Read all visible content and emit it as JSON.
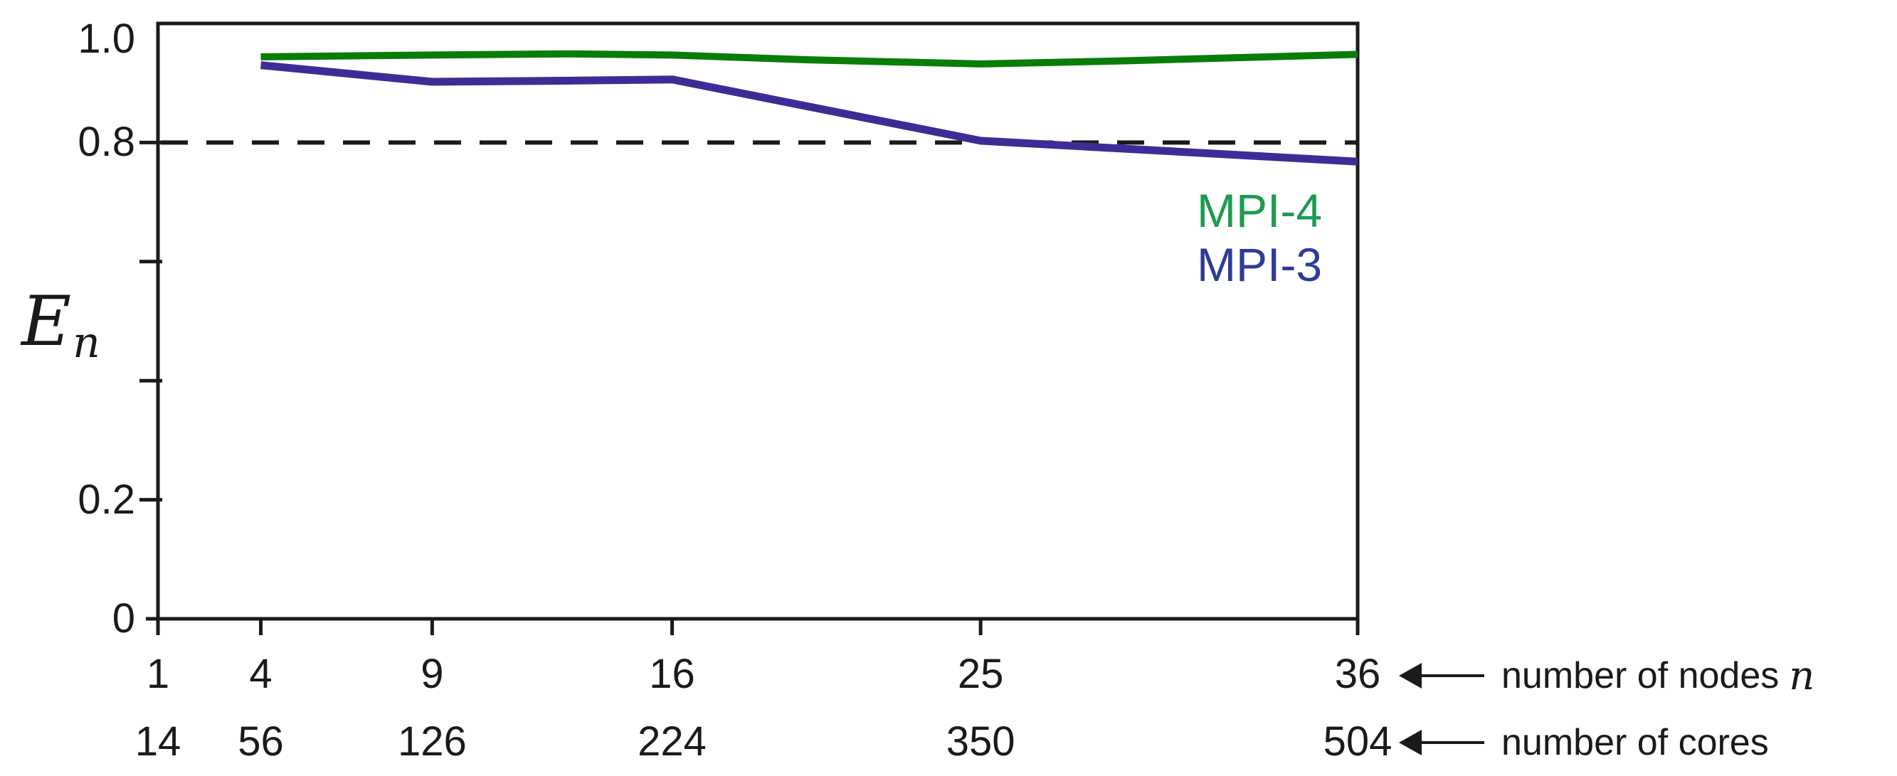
{
  "figure": {
    "background": "#ffffff",
    "axis_color": "#1a1a1a"
  },
  "chart_data": {
    "type": "line",
    "title": "",
    "ylabel_math": {
      "base": "E",
      "subscript": "n"
    },
    "ylim": [
      0,
      1.0
    ],
    "xlim_nodes": [
      1,
      36
    ],
    "grid": false,
    "legend_position": "upper-right-inside",
    "dashed_reference_y": 0.8,
    "yticks": [
      {
        "value": 1.0,
        "label": "1.0"
      },
      {
        "value": 0.8,
        "label": "0.8"
      },
      {
        "value": 0.6,
        "label": ""
      },
      {
        "value": 0.4,
        "label": ""
      },
      {
        "value": 0.2,
        "label": "0.2"
      },
      {
        "value": 0.0,
        "label": "0"
      }
    ],
    "xticks": [
      {
        "nodes": 1,
        "nodes_label": "1",
        "cores_label": "14"
      },
      {
        "nodes": 4,
        "nodes_label": "4",
        "cores_label": "56"
      },
      {
        "nodes": 9,
        "nodes_label": "9",
        "cores_label": "126"
      },
      {
        "nodes": 16,
        "nodes_label": "16",
        "cores_label": "224"
      },
      {
        "nodes": 25,
        "nodes_label": "25",
        "cores_label": "350"
      },
      {
        "nodes": 36,
        "nodes_label": "36",
        "cores_label": "504"
      }
    ],
    "series": [
      {
        "name": "MPI-4",
        "line_color": "#087d08",
        "legend_color": "#1d9b50",
        "points": [
          [
            4,
            0.944
          ],
          [
            9,
            0.947
          ],
          [
            13,
            0.949
          ],
          [
            16,
            0.947
          ],
          [
            20,
            0.939
          ],
          [
            25,
            0.932
          ],
          [
            29,
            0.937
          ],
          [
            36,
            0.948
          ]
        ]
      },
      {
        "name": "MPI-3",
        "line_color": "#3c2d96",
        "legend_color": "#2d3c96",
        "points": [
          [
            4,
            0.93
          ],
          [
            9,
            0.902
          ],
          [
            13,
            0.904
          ],
          [
            16,
            0.906
          ],
          [
            25,
            0.803
          ],
          [
            36,
            0.768
          ]
        ]
      }
    ],
    "axis_annotations": [
      {
        "text": "number of nodes",
        "math_suffix": "n"
      },
      {
        "text": "number of cores",
        "math_suffix": ""
      }
    ]
  }
}
